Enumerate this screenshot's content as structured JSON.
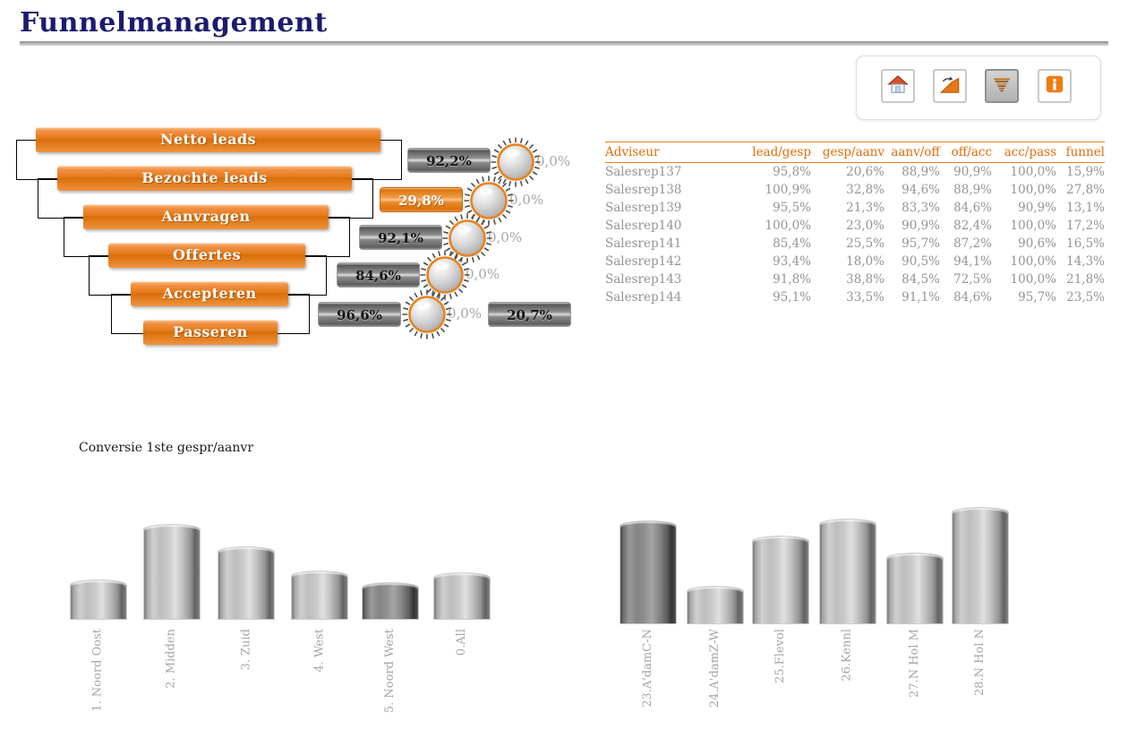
{
  "page": {
    "title": "Funnelmanagement"
  },
  "toolbar": {
    "buttons": [
      {
        "id": "home",
        "icon": "home-icon",
        "selected": false
      },
      {
        "id": "chart",
        "icon": "chart-icon",
        "selected": false
      },
      {
        "id": "funnel",
        "icon": "funnel-icon",
        "selected": true
      },
      {
        "id": "info",
        "icon": "info-icon",
        "selected": false
      }
    ]
  },
  "funnel": {
    "stages": [
      "Netto leads",
      "Bezochte leads",
      "Aanvragen",
      "Offertes",
      "Accepteren",
      "Passeren"
    ],
    "conversions": [
      {
        "value": "92,2%",
        "style": "gray",
        "knob_value": "0,0%"
      },
      {
        "value": "29,8%",
        "style": "orange",
        "knob_value": "0,0%"
      },
      {
        "value": "92,1%",
        "style": "gray",
        "knob_value": "0,0%"
      },
      {
        "value": "84,6%",
        "style": "gray",
        "knob_value": "0,0%"
      },
      {
        "value": "96,6%",
        "style": "gray",
        "knob_value": "0,0%",
        "extra_value": "20,7%",
        "extra_style": "gray"
      }
    ]
  },
  "table": {
    "columns": [
      "Adviseur",
      "lead/gesp",
      "gesp/aanv",
      "aanv/off",
      "off/acc",
      "acc/pass",
      "funnel"
    ],
    "rows": [
      [
        "Salesrep137",
        "95,8%",
        "20,6%",
        "88,9%",
        "90,9%",
        "100,0%",
        "15,9%"
      ],
      [
        "Salesrep138",
        "100,9%",
        "32,8%",
        "94,6%",
        "88,9%",
        "100,0%",
        "27,8%"
      ],
      [
        "Salesrep139",
        "95,5%",
        "21,3%",
        "83,3%",
        "84,6%",
        "90,9%",
        "13,1%"
      ],
      [
        "Salesrep140",
        "100,0%",
        "23,0%",
        "90,9%",
        "82,4%",
        "100,0%",
        "17,2%"
      ],
      [
        "Salesrep141",
        "85,4%",
        "25,5%",
        "95,7%",
        "87,2%",
        "90,6%",
        "16,5%"
      ],
      [
        "Salesrep142",
        "93,4%",
        "18,0%",
        "90,5%",
        "94,1%",
        "100,0%",
        "14,3%"
      ],
      [
        "Salesrep143",
        "91,8%",
        "38,8%",
        "84,5%",
        "72,5%",
        "100,0%",
        "21,8%"
      ],
      [
        "Salesrep144",
        "95,1%",
        "33,5%",
        "91,1%",
        "84,6%",
        "95,7%",
        "23,5%"
      ]
    ]
  },
  "chart_section": {
    "title": "Conversie 1ste gespr/aanvr"
  },
  "chart_data": [
    {
      "type": "bar",
      "title": "Conversie 1ste gespr/aanvr",
      "categories": [
        "1. Noord Oost",
        "2. Midden",
        "3. Zuid",
        "4. West",
        "5. Noord West",
        "0.All"
      ],
      "values": [
        45,
        107,
        82,
        55,
        42,
        53
      ],
      "values_unit": "bar height in px (chart shows no value axis)",
      "dark_bars": [
        4
      ],
      "xlabel": "",
      "ylabel": "",
      "grid": false,
      "legend": false
    },
    {
      "type": "bar",
      "title": "",
      "categories": [
        "23.A'damC-N",
        "24.A'damZ-W",
        "25.Flevol",
        "26.Kennl",
        "27.N Hol M",
        "28.N Hol N"
      ],
      "values": [
        116,
        43,
        99,
        118,
        80,
        131
      ],
      "values_unit": "bar height in px (chart shows no value axis)",
      "dark_bars": [
        0
      ],
      "xlabel": "",
      "ylabel": "",
      "grid": false,
      "legend": false
    }
  ],
  "colors": {
    "accent_orange": "#E87817",
    "title_navy": "#1B1B6F",
    "table_header_orange": "#E36C0A",
    "table_text_gray": "#949494",
    "muted_label_gray": "#A6A6A6",
    "knob_ring_orange": "#E8821E"
  }
}
